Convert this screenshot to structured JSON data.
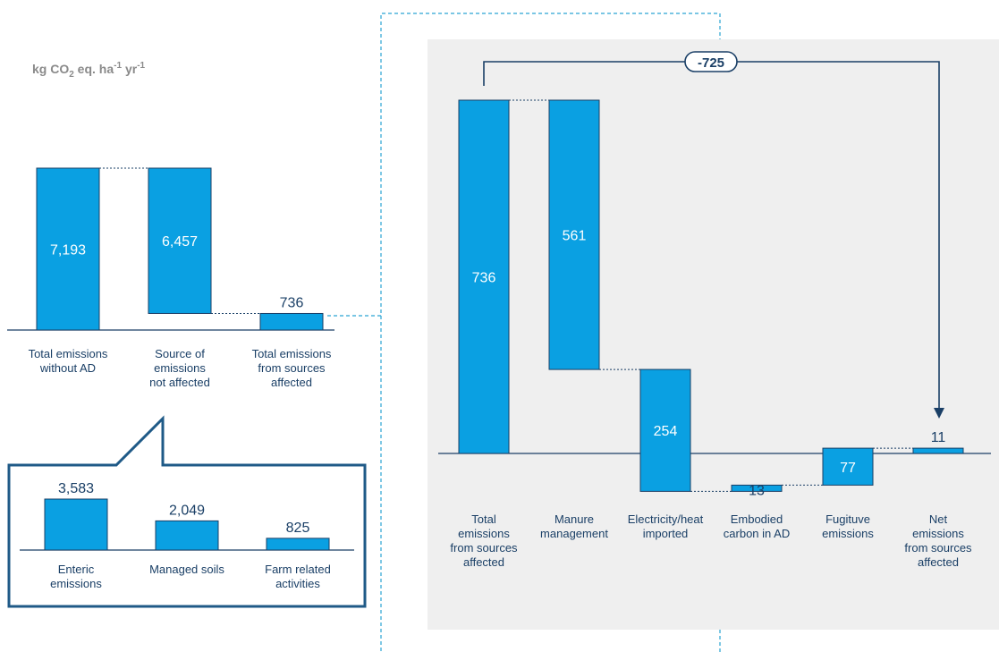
{
  "units": {
    "main": "kg CO",
    "sub": "2",
    "mid": " eq. ha",
    "sup1": "-1",
    "mid2": " yr",
    "sup2": "-1"
  },
  "colors": {
    "bar": "#0aa0e2",
    "bar_edge": "#1a3f66",
    "value_dark": "#1a3f66",
    "value_light": "#ffffff",
    "connector": "#1a3f66",
    "panel_bg": "#efefef",
    "callout": "#1f5a87",
    "dashed": "#2aa3d3"
  },
  "chart_data": [
    {
      "type": "bar",
      "title": "",
      "categories": [
        "Total emissions without AD",
        "Source of emissions not affected",
        "Total emissions from sources affected"
      ],
      "category_lines": [
        [
          "Total emissions",
          "without AD"
        ],
        [
          "Source of",
          "emissions",
          "not affected"
        ],
        [
          "Total emissions",
          "from sources",
          "affected"
        ]
      ],
      "values": [
        7193,
        -6457,
        736
      ],
      "labels": [
        "7,193",
        "6,457",
        "736"
      ],
      "waterfall": true
    },
    {
      "type": "bar",
      "title": "",
      "categories": [
        "Enteric emissions",
        "Managed soils",
        "Farm related activities"
      ],
      "category_lines": [
        [
          "Enteric",
          "emissions"
        ],
        [
          "Managed soils"
        ],
        [
          "Farm related",
          "activities"
        ]
      ],
      "values": [
        3583,
        2049,
        825
      ],
      "labels": [
        "3,583",
        "2,049",
        "825"
      ]
    },
    {
      "type": "bar",
      "title": "",
      "categories": [
        "Total emissions from sources affected",
        "Manure management",
        "Electricity/heat imported",
        "Embodied carbon in AD",
        "Fugituve emissions",
        "Net emissions from sources affected"
      ],
      "category_lines": [
        [
          "Total",
          "emissions",
          "from sources",
          "affected"
        ],
        [
          "Manure",
          "management"
        ],
        [
          "Electricity/heat",
          "imported"
        ],
        [
          "Embodied",
          "carbon in AD"
        ],
        [
          "Fugituve",
          "emissions"
        ],
        [
          "Net",
          "emissions",
          "from sources",
          "affected"
        ]
      ],
      "values": [
        736,
        -561,
        -254,
        13,
        77,
        11
      ],
      "labels": [
        "736",
        "561",
        "254",
        "13",
        "77",
        "11"
      ],
      "waterfall": true,
      "difference_label": "-725"
    }
  ]
}
